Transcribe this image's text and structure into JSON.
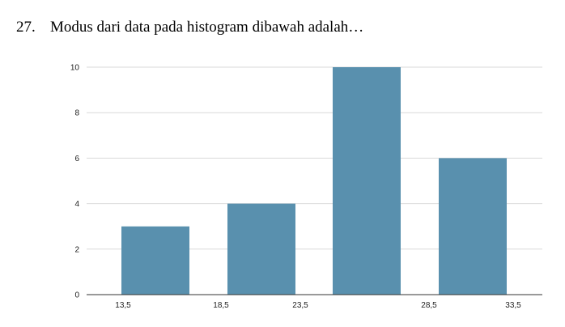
{
  "question": {
    "number": "27.",
    "text": "Modus dari data pada histogram dibawah adalah…"
  },
  "chart_data": {
    "type": "bar",
    "title": "",
    "xlabel": "",
    "ylabel": "",
    "values": [
      3,
      4,
      10,
      6
    ],
    "ylim": [
      0,
      10
    ],
    "yticks": [
      "0",
      "2",
      "4",
      "6",
      "8",
      "10"
    ],
    "xtick_labels": [
      "13,5",
      "18,5",
      "23,5",
      "28,5",
      "33,5"
    ],
    "grid": true,
    "legend": "none",
    "bar_color": "#5990AE",
    "grid_color": "#D9D9D9",
    "axis_color": "#333333"
  }
}
